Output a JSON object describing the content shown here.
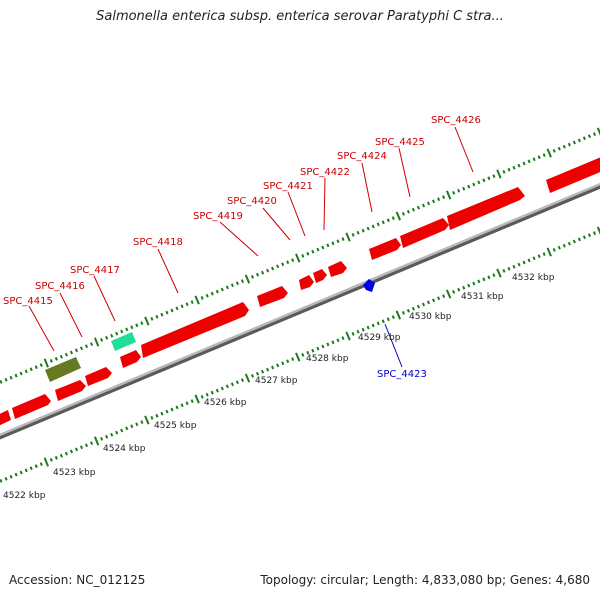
{
  "title": "Salmonella enterica subsp. enterica serovar Paratyphi C stra...",
  "accession_label": "Accession: NC_012125",
  "summary_label": "Topology: circular; Length: 4,833,080 bp; Genes: 4,680",
  "colors": {
    "forward_gene": "#ee0000",
    "reverse_gene": "#0000ee",
    "rrna": "#667a22",
    "trna": "#22dd99",
    "forward_label": "#cc0000",
    "reverse_label": "#0000cc",
    "tick": "#1f7a1f",
    "backbone": "#8c8c8c"
  },
  "scale": {
    "ticks": [
      "4522 kbp",
      "4523 kbp",
      "4524 kbp",
      "4525 kbp",
      "4526 kbp",
      "4527 kbp",
      "4528 kbp",
      "4529 kbp",
      "4530 kbp",
      "4531 kbp",
      "4532 kbp"
    ]
  },
  "gene_labels": [
    {
      "name": "SPC_4415",
      "strand": "forward"
    },
    {
      "name": "SPC_4416",
      "strand": "forward"
    },
    {
      "name": "SPC_4417",
      "strand": "forward"
    },
    {
      "name": "SPC_4418",
      "strand": "forward"
    },
    {
      "name": "SPC_4419",
      "strand": "forward"
    },
    {
      "name": "SPC_4420",
      "strand": "forward"
    },
    {
      "name": "SPC_4421",
      "strand": "forward"
    },
    {
      "name": "SPC_4422",
      "strand": "forward"
    },
    {
      "name": "SPC_4423",
      "strand": "reverse"
    },
    {
      "name": "SPC_4424",
      "strand": "forward"
    },
    {
      "name": "SPC_4425",
      "strand": "forward"
    },
    {
      "name": "SPC_4426",
      "strand": "forward"
    }
  ]
}
